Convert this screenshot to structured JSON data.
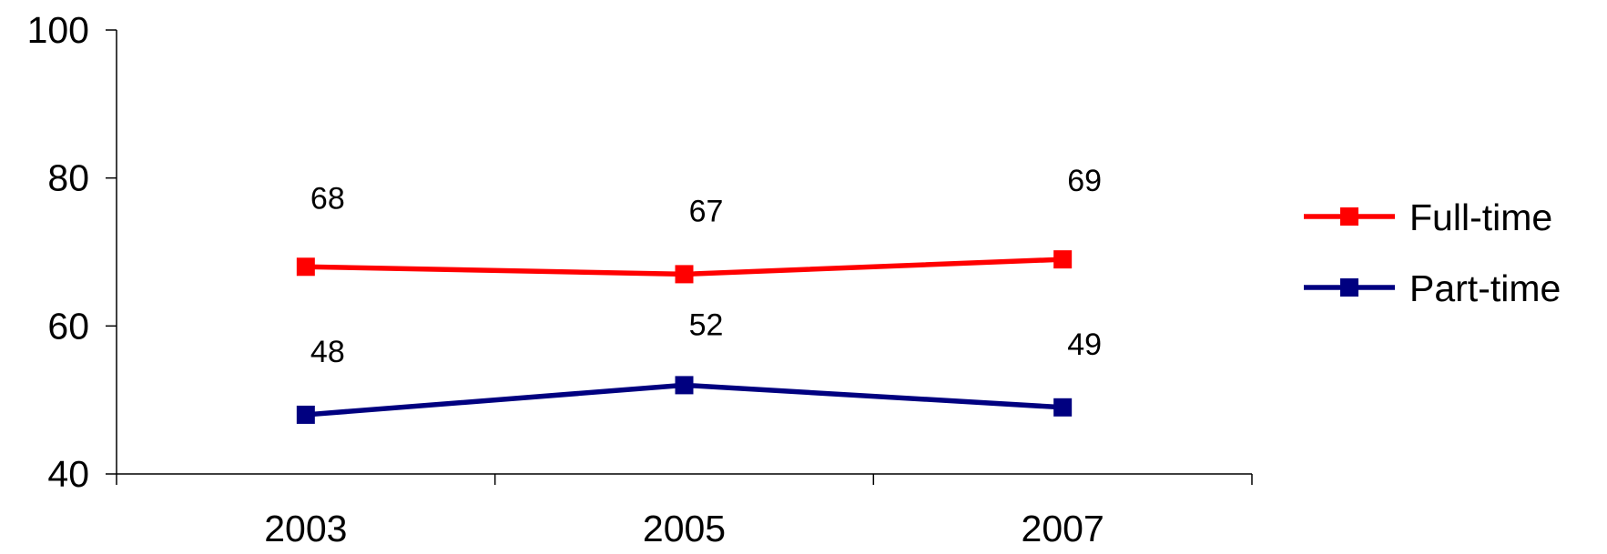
{
  "chart_data": {
    "type": "line",
    "categories": [
      "2003",
      "2005",
      "2007"
    ],
    "series": [
      {
        "name": "Full-time",
        "values": [
          68,
          67,
          69
        ],
        "color": "#ff0000"
      },
      {
        "name": "Part-time",
        "values": [
          48,
          52,
          49
        ],
        "color": "#000080"
      }
    ],
    "ylim": [
      40,
      100
    ],
    "yticks": [
      "40",
      "60",
      "80",
      "100"
    ],
    "legend_position": "right",
    "grid": false,
    "marker": "square"
  }
}
